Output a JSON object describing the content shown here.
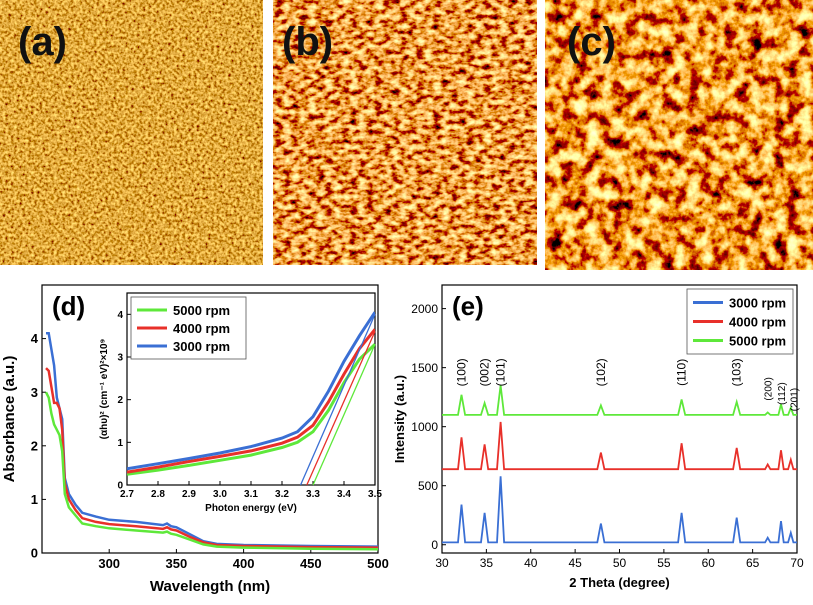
{
  "panels": [
    "(a)",
    "(b)",
    "(c)"
  ],
  "chart_data": [
    {
      "type": "line",
      "panel_label": "(d)",
      "x_label": "Wavelength (nm)",
      "y_label": "Absorbance (a.u.)",
      "x": [
        253,
        255,
        257,
        259,
        261,
        263,
        265,
        267,
        270,
        275,
        280,
        290,
        300,
        320,
        340,
        343,
        346,
        350,
        360,
        370,
        380,
        400,
        450,
        500
      ],
      "series": [
        {
          "name": "3000 rpm",
          "color": "#3a6fd4",
          "values": [
            4.1,
            4.1,
            3.8,
            3.5,
            2.9,
            2.7,
            2.5,
            1.4,
            1.1,
            0.9,
            0.75,
            0.68,
            0.62,
            0.58,
            0.52,
            0.55,
            0.5,
            0.48,
            0.35,
            0.22,
            0.17,
            0.15,
            0.13,
            0.12
          ]
        },
        {
          "name": "4000 rpm",
          "color": "#e8302a",
          "values": [
            3.45,
            3.4,
            3.1,
            2.8,
            2.8,
            2.7,
            2.3,
            1.3,
            1.0,
            0.8,
            0.65,
            0.58,
            0.54,
            0.5,
            0.45,
            0.48,
            0.44,
            0.42,
            0.3,
            0.2,
            0.15,
            0.13,
            0.11,
            0.1
          ]
        },
        {
          "name": "5000 rpm",
          "color": "#5ee83a",
          "values": [
            3.0,
            2.9,
            2.6,
            2.4,
            2.3,
            2.2,
            1.9,
            1.1,
            0.85,
            0.7,
            0.55,
            0.5,
            0.46,
            0.42,
            0.38,
            0.4,
            0.36,
            0.34,
            0.25,
            0.16,
            0.12,
            0.1,
            0.08,
            0.07
          ]
        }
      ],
      "xlim": [
        250,
        500
      ],
      "xticks": [
        300,
        350,
        400,
        450,
        500
      ],
      "ylim": [
        0,
        5
      ],
      "yticks": [
        0,
        1,
        2,
        3,
        4
      ]
    },
    {
      "type": "line",
      "x_label": "Photon energy (eV)",
      "y_label": "(αhυ)² (cm⁻¹ eV)²×10⁹",
      "legend": "upper left",
      "x": [
        2.7,
        2.8,
        2.9,
        3.0,
        3.1,
        3.2,
        3.25,
        3.3,
        3.35,
        3.4,
        3.45,
        3.5
      ],
      "series": [
        {
          "name": "5000 rpm",
          "color": "#5ee83a",
          "values": [
            0.25,
            0.35,
            0.46,
            0.58,
            0.7,
            0.88,
            1.0,
            1.25,
            1.75,
            2.4,
            2.95,
            3.3
          ]
        },
        {
          "name": "4000 rpm",
          "color": "#e8302a",
          "values": [
            0.3,
            0.42,
            0.55,
            0.67,
            0.8,
            0.98,
            1.12,
            1.4,
            1.95,
            2.6,
            3.2,
            3.65
          ]
        },
        {
          "name": "3000 rpm",
          "color": "#3a6fd4",
          "values": [
            0.38,
            0.5,
            0.62,
            0.75,
            0.9,
            1.1,
            1.25,
            1.6,
            2.2,
            2.9,
            3.5,
            4.05
          ]
        }
      ],
      "fits": [
        {
          "color": "#5ee83a",
          "x": [
            3.3,
            3.5
          ],
          "y": [
            0,
            3.3
          ]
        },
        {
          "color": "#e8302a",
          "x": [
            3.28,
            3.5
          ],
          "y": [
            0,
            3.6
          ]
        },
        {
          "color": "#3a6fd4",
          "x": [
            3.26,
            3.5
          ],
          "y": [
            0,
            4.0
          ]
        }
      ],
      "xlim": [
        2.7,
        3.5
      ],
      "xticks": [
        2.7,
        2.8,
        2.9,
        {
          "value": 3,
          "label": "3.0"
        },
        3.1,
        3.2,
        3.3,
        3.4,
        3.5
      ],
      "ylim": [
        0,
        4.5
      ],
      "yticks": [
        0,
        1,
        2,
        3,
        4
      ]
    },
    {
      "type": "line",
      "panel_label": "(e)",
      "x_label": "2 Theta (degree)",
      "y_label": "Intensity (a.u.)",
      "legend": "upper right",
      "x": [
        30,
        31.8,
        32.2,
        32.6,
        34.4,
        34.8,
        35.2,
        36.2,
        36.6,
        37,
        47.5,
        47.9,
        48.3,
        56.6,
        57,
        57.4,
        62.8,
        63.2,
        63.6,
        66.4,
        66.7,
        67,
        67.9,
        68.2,
        68.5,
        69,
        69.3,
        69.6,
        70
      ],
      "series": [
        {
          "name": "3000 rpm",
          "color": "#3a6fd4",
          "values": [
            20,
            20,
            340,
            20,
            20,
            270,
            20,
            20,
            580,
            20,
            20,
            180,
            20,
            20,
            270,
            20,
            20,
            230,
            20,
            20,
            60,
            20,
            20,
            200,
            20,
            20,
            100,
            20,
            20
          ]
        },
        {
          "name": "4000 rpm",
          "color": "#e8302a",
          "values": [
            640,
            640,
            910,
            640,
            640,
            850,
            640,
            640,
            1040,
            640,
            640,
            780,
            640,
            640,
            860,
            640,
            640,
            820,
            640,
            640,
            680,
            640,
            640,
            800,
            640,
            640,
            720,
            640,
            640
          ]
        },
        {
          "name": "5000 rpm",
          "color": "#5ee83a",
          "values": [
            1100,
            1100,
            1270,
            1100,
            1100,
            1200,
            1100,
            1100,
            1350,
            1100,
            1100,
            1180,
            1100,
            1100,
            1230,
            1100,
            1100,
            1210,
            1100,
            1100,
            1120,
            1100,
            1100,
            1190,
            1100,
            1100,
            1160,
            1100,
            1100
          ]
        }
      ],
      "annotations": [
        {
          "text": "(100)",
          "x": 32.2,
          "y": 1460
        },
        {
          "text": "(002)",
          "x": 34.8,
          "y": 1460
        },
        {
          "text": "(101)",
          "x": 36.6,
          "y": 1460
        },
        {
          "text": "(102)",
          "x": 47.9,
          "y": 1460
        },
        {
          "text": "(110)",
          "x": 57,
          "y": 1460
        },
        {
          "text": "(103)",
          "x": 63.2,
          "y": 1460
        },
        {
          "text": "(200)",
          "x": 66.7,
          "y": 1320
        },
        {
          "text": "(112)",
          "x": 68.2,
          "y": 1280
        },
        {
          "text": "(201)",
          "x": 69.6,
          "y": 1230
        }
      ],
      "xlim": [
        30,
        70
      ],
      "xticks": [
        30,
        35,
        40,
        45,
        50,
        55,
        60,
        65,
        70
      ],
      "ylim": [
        -70,
        2200
      ],
      "yticks": [
        0,
        500,
        1000,
        1500,
        2000
      ]
    }
  ]
}
